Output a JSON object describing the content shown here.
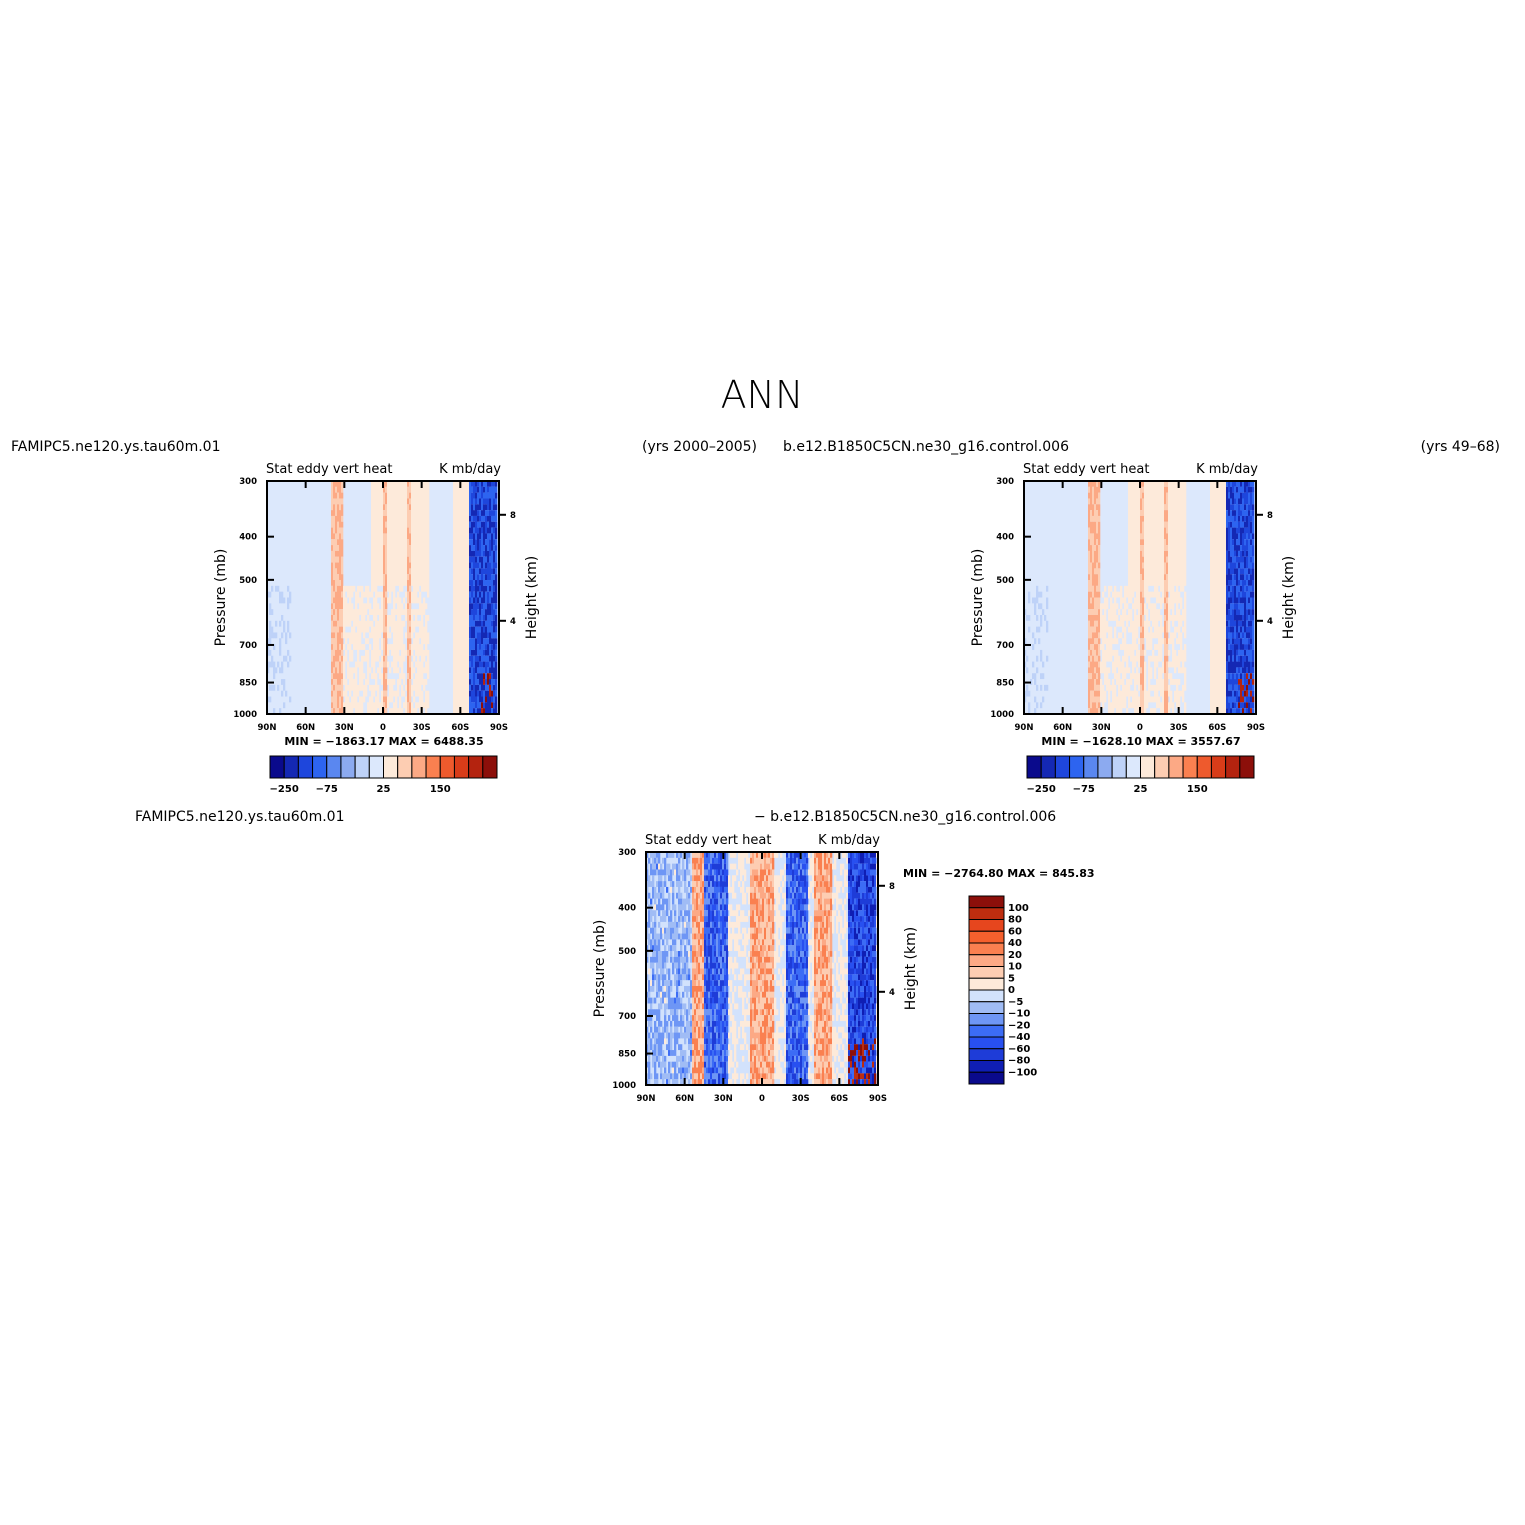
{
  "page_title": "ANN",
  "colors": {
    "cb_main": [
      "#0a0a8c",
      "#1428b4",
      "#1e46dc",
      "#2d64f0",
      "#5a87f0",
      "#8caaf0",
      "#bed2f8",
      "#dce8fc",
      "#fdeada",
      "#fdcdb2",
      "#fca985",
      "#fa8050",
      "#ee5a2d",
      "#d83c19",
      "#b4230f",
      "#8c0f0a"
    ],
    "cb_diff": [
      "#0a0a8c",
      "#0f1eb4",
      "#1e3cd8",
      "#2850f0",
      "#3c6cf5",
      "#6e96f5",
      "#a0bcf5",
      "#d2e2fc",
      "#fdeada",
      "#fdcdb2",
      "#fca985",
      "#fa8050",
      "#f5602d",
      "#e6461e",
      "#be2d0f",
      "#8c0f0a"
    ]
  },
  "plots": [
    {
      "id": "top-left",
      "case_title": "FAMIPC5.ne120.ys.tau60m.01",
      "years_title": "(yrs 2000–2005)",
      "variable": "Stat eddy vert heat",
      "units": "K mb/day",
      "stats": "MIN = −1863.17   MAX = 6488.35",
      "colorbar_labels": [
        "−250",
        "−75",
        "25",
        "150"
      ]
    },
    {
      "id": "top-right",
      "case_title": "b.e12.B1850C5CN.ne30_g16.control.006",
      "years_title": "(yrs 49–68)",
      "variable": "Stat eddy vert heat",
      "units": "K mb/day",
      "stats": "MIN = −1628.10   MAX = 3557.67",
      "colorbar_labels": [
        "−250",
        "−75",
        "25",
        "150"
      ]
    },
    {
      "id": "bottom-diff",
      "case_title": "FAMIPC5.ne120.ys.tau60m.01",
      "case_title_2": "− b.e12.B1850C5CN.ne30_g16.control.006",
      "variable": "Stat eddy vert heat",
      "units": "K mb/day",
      "stats": "MIN = −2764.80   MAX = 845.83",
      "colorbar_labels": [
        "100",
        "80",
        "60",
        "40",
        "20",
        "10",
        "5",
        "0",
        "−5",
        "−10",
        "−20",
        "−40",
        "−60",
        "−80",
        "−100"
      ]
    }
  ],
  "chart_data": [
    {
      "type": "heatmap",
      "title": "Stat eddy vert heat",
      "units": "K mb/day",
      "xlabel": "",
      "x_ticks": [
        "90N",
        "60N",
        "30N",
        "0",
        "30S",
        "60S",
        "90S"
      ],
      "ylabel": "Pressure (mb)",
      "y_ticks": [
        "300",
        "400",
        "500",
        "700",
        "850",
        "1000"
      ],
      "y_scale": "log",
      "ylim": [
        1000,
        300
      ],
      "y2label": "Height (km)",
      "y2_ticks": [
        "8",
        "4"
      ],
      "min": -1863.17,
      "max": 6488.35,
      "levels": [
        -250,
        -75,
        25,
        150
      ]
    },
    {
      "type": "heatmap",
      "title": "Stat eddy vert heat",
      "units": "K mb/day",
      "xlabel": "",
      "x_ticks": [
        "90N",
        "60N",
        "30N",
        "0",
        "30S",
        "60S",
        "90S"
      ],
      "ylabel": "Pressure (mb)",
      "y_ticks": [
        "300",
        "400",
        "500",
        "700",
        "850",
        "1000"
      ],
      "y_scale": "log",
      "ylim": [
        1000,
        300
      ],
      "y2label": "Height (km)",
      "y2_ticks": [
        "8",
        "4"
      ],
      "min": -1628.1,
      "max": 3557.67,
      "levels": [
        -250,
        -75,
        25,
        150
      ]
    },
    {
      "type": "heatmap",
      "title": "Stat eddy vert heat",
      "units": "K mb/day",
      "xlabel": "",
      "x_ticks": [
        "90N",
        "60N",
        "30N",
        "0",
        "30S",
        "60S",
        "90S"
      ],
      "ylabel": "Pressure (mb)",
      "y_ticks": [
        "300",
        "400",
        "500",
        "700",
        "850",
        "1000"
      ],
      "y_scale": "log",
      "ylim": [
        1000,
        300
      ],
      "y2label": "Height (km)",
      "y2_ticks": [
        "8",
        "4"
      ],
      "min": -2764.8,
      "max": 845.83,
      "levels": [
        -100,
        -80,
        -60,
        -40,
        -20,
        -10,
        -5,
        0,
        5,
        10,
        20,
        40,
        60,
        80,
        100
      ]
    }
  ]
}
